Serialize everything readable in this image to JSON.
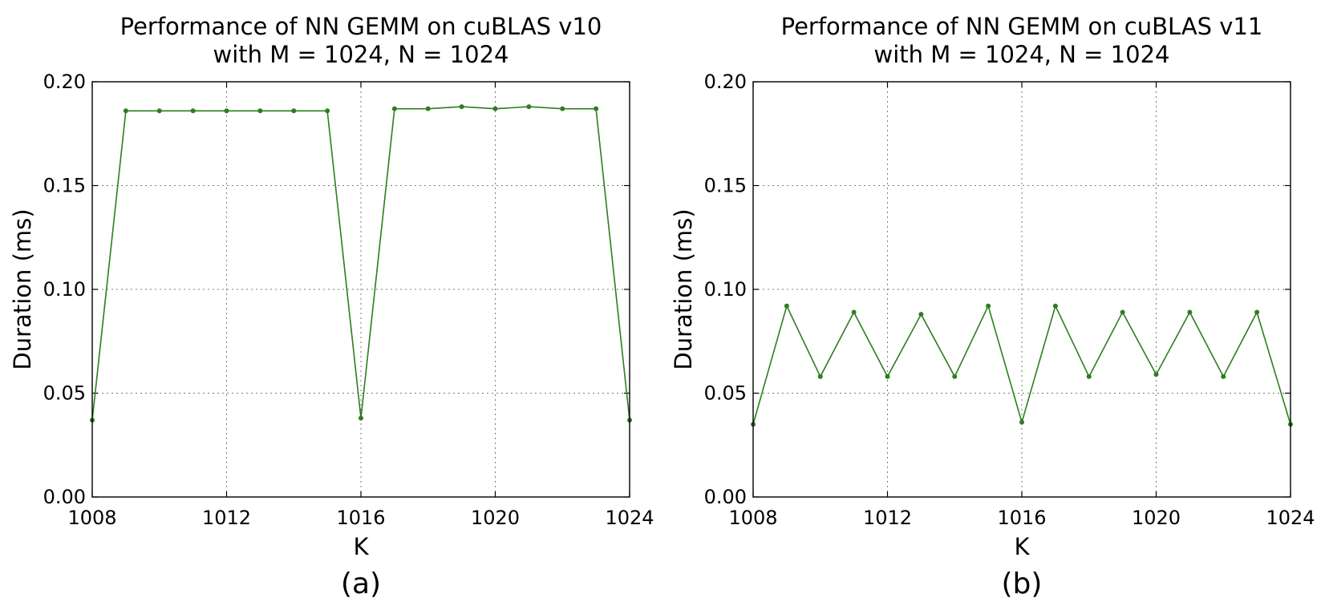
{
  "chart_data": [
    {
      "type": "line",
      "title_line1": "Performance of NN GEMM on cuBLAS v10",
      "title_line2": "with M = 1024, N = 1024",
      "xlabel": "K",
      "ylabel": "Duration (ms)",
      "caption": "(a)",
      "xlim": [
        1008,
        1024
      ],
      "ylim": [
        0.0,
        0.2
      ],
      "xticks": [
        1008,
        1012,
        1016,
        1020,
        1024
      ],
      "xtick_labels": [
        "1008",
        "1012",
        "1016",
        "1020",
        "1024"
      ],
      "yticks": [
        0.0,
        0.05,
        0.1,
        0.15,
        0.2
      ],
      "ytick_labels": [
        "0.00",
        "0.05",
        "0.10",
        "0.15",
        "0.20"
      ],
      "grid": true,
      "color": "#2e7d20",
      "series": [
        {
          "x": [
            1008,
            1009,
            1010,
            1011,
            1012,
            1013,
            1014,
            1015,
            1016,
            1017,
            1018,
            1019,
            1020,
            1021,
            1022,
            1023,
            1024
          ],
          "values": [
            0.037,
            0.186,
            0.186,
            0.186,
            0.186,
            0.186,
            0.186,
            0.186,
            0.038,
            0.187,
            0.187,
            0.188,
            0.187,
            0.188,
            0.187,
            0.187,
            0.037
          ]
        }
      ]
    },
    {
      "type": "line",
      "title_line1": "Performance of NN GEMM on cuBLAS v11",
      "title_line2": "with M = 1024, N = 1024",
      "xlabel": "K",
      "ylabel": "Duration (ms)",
      "caption": "(b)",
      "xlim": [
        1008,
        1024
      ],
      "ylim": [
        0.0,
        0.2
      ],
      "xticks": [
        1008,
        1012,
        1016,
        1020,
        1024
      ],
      "xtick_labels": [
        "1008",
        "1012",
        "1016",
        "1020",
        "1024"
      ],
      "yticks": [
        0.0,
        0.05,
        0.1,
        0.15,
        0.2
      ],
      "ytick_labels": [
        "0.00",
        "0.05",
        "0.10",
        "0.15",
        "0.20"
      ],
      "grid": true,
      "color": "#2e7d20",
      "series": [
        {
          "x": [
            1008,
            1009,
            1010,
            1011,
            1012,
            1013,
            1014,
            1015,
            1016,
            1017,
            1018,
            1019,
            1020,
            1021,
            1022,
            1023,
            1024
          ],
          "values": [
            0.035,
            0.092,
            0.058,
            0.089,
            0.058,
            0.088,
            0.058,
            0.092,
            0.036,
            0.092,
            0.058,
            0.089,
            0.059,
            0.089,
            0.058,
            0.089,
            0.035
          ]
        }
      ]
    }
  ]
}
